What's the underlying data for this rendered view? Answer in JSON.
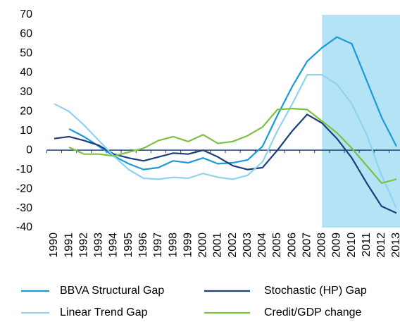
{
  "chart_data": {
    "type": "line",
    "categories": [
      "1990",
      "1991",
      "1992",
      "1993",
      "1994",
      "1995",
      "1996",
      "1997",
      "1998",
      "1999",
      "2000",
      "2001",
      "2002",
      "2003",
      "2004",
      "2005",
      "2006",
      "2007",
      "2008",
      "2009",
      "2010",
      "2011",
      "2012",
      "2013"
    ],
    "series": [
      {
        "name": "BBVA Structural Gap",
        "color": "#1a9ad6",
        "values": [
          null,
          11,
          7,
          2,
          -3,
          -7,
          -10,
          -9,
          -5.5,
          -6.5,
          -4,
          -7,
          -6.5,
          -5,
          2,
          18,
          33,
          46,
          53,
          58.5,
          55,
          36,
          17,
          2
        ]
      },
      {
        "name": "Stochastic (HP) Gap",
        "color": "#1b3f7a",
        "values": [
          6,
          7,
          5,
          2.5,
          -2,
          -4,
          -5.5,
          -3.5,
          -1.5,
          -2,
          0,
          -3.5,
          -8,
          -10,
          -9,
          0,
          10,
          18.5,
          14,
          6,
          -4,
          -17,
          -29,
          -32.5
        ]
      },
      {
        "name": "Linear Trend Gap",
        "color": "#8fd3f0",
        "values": [
          24,
          20,
          13,
          5,
          -3,
          -10,
          -14.5,
          -15,
          -14,
          -14.5,
          -12,
          -14,
          -15,
          -13,
          -6,
          10,
          24,
          39,
          39,
          34,
          24,
          8,
          -13,
          -30
        ]
      },
      {
        "name": "Credit/GDP change",
        "color": "#7cc242",
        "values": [
          null,
          1.5,
          -2,
          -2,
          -3,
          -1,
          1,
          5,
          7,
          4.5,
          8,
          3.5,
          4.5,
          7.5,
          12,
          21,
          21.5,
          21,
          15,
          9,
          1,
          -8,
          -17,
          -15
        ]
      }
    ],
    "ylim": [
      -40,
      70
    ],
    "yticks": [
      -40,
      -30,
      -20,
      -10,
      0,
      10,
      20,
      30,
      40,
      50,
      60,
      70
    ],
    "highlight": {
      "from": "2008",
      "color": "#b3e3f5"
    }
  }
}
